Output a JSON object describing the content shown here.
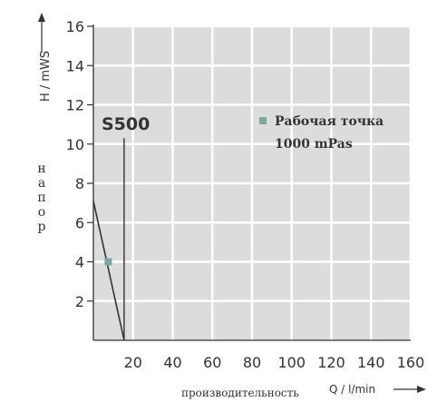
{
  "chart_data": {
    "type": "line",
    "title": "",
    "curve_label": "S500",
    "xlabel": "Q / l/min",
    "xlabel_ru": "производительность",
    "ylabel": "H / mWS",
    "ylabel_ru": [
      "н",
      "а",
      "п",
      "о",
      "р"
    ],
    "xlim": [
      0,
      160
    ],
    "ylim": [
      0,
      16
    ],
    "x_ticks": [
      "20",
      "40",
      "60",
      "80",
      "100",
      "120",
      "140",
      "160"
    ],
    "y_ticks": [
      "2",
      "4",
      "6",
      "8",
      "10",
      "12",
      "14",
      "16"
    ],
    "series": [
      {
        "name": "",
        "x": [
          0,
          15.5
        ],
        "y": [
          7.1,
          0
        ]
      }
    ],
    "s500_marker_line": {
      "x": 15.5,
      "y": [
        0,
        10.3
      ]
    },
    "operating_point": {
      "x": 7.5,
      "y": 4.0
    },
    "legend": {
      "position": "top-right",
      "label_line1": "Рабочая точка",
      "label_line2": "1000 mPas"
    },
    "grid": true,
    "colors": {
      "background": "#dcdcdc",
      "grid": "#ffffff",
      "axis": "#333333",
      "curve": "#333333",
      "marker": "#7aa8a4"
    }
  }
}
